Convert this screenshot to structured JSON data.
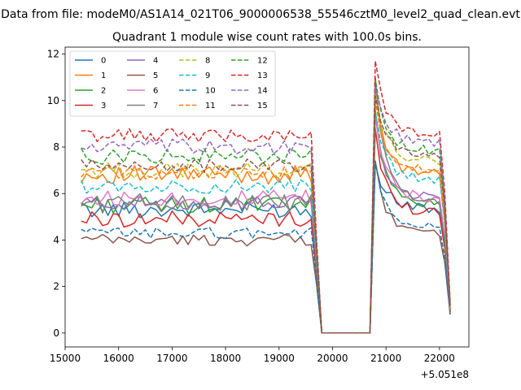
{
  "chart_data": {
    "type": "line",
    "suptitle": "Data from file: modeM0/AS1A14_021T06_9000006538_55546cztM0_level2_quad_clean.evt",
    "title": "Quadrant 1 module wise count rates with 100.0s bins.",
    "xlabel": "",
    "ylabel": "",
    "x_offset_label": "+5.051e8",
    "xlim": [
      15000,
      22550
    ],
    "ylim": [
      -0.6,
      12.3
    ],
    "x_ticks": [
      15000,
      16000,
      17000,
      18000,
      19000,
      20000,
      21000,
      22000
    ],
    "x_tick_labels": [
      "15000",
      "16000",
      "17000",
      "18000",
      "19000",
      "20000",
      "21000",
      "22000"
    ],
    "y_ticks": [
      0,
      2,
      4,
      6,
      8,
      10,
      12
    ],
    "y_tick_labels": [
      "0",
      "2",
      "4",
      "6",
      "8",
      "10",
      "12"
    ],
    "grid": false,
    "legend_position": "top-left",
    "x_start": 15300,
    "x_step": 100,
    "series": [
      {
        "name": "0",
        "color": "#1f77b4",
        "dash": "solid",
        "base": 5.3,
        "amp": 0.35,
        "peak": 7.3,
        "after": 5.4,
        "end": 0.8
      },
      {
        "name": "1",
        "color": "#ff7f0e",
        "dash": "solid",
        "base": 6.8,
        "amp": 0.4,
        "peak": 10.6,
        "after": 6.8,
        "end": 1.0
      },
      {
        "name": "2",
        "color": "#2ca02c",
        "dash": "solid",
        "base": 5.5,
        "amp": 0.35,
        "peak": 9.6,
        "after": 5.5,
        "end": 0.9
      },
      {
        "name": "3",
        "color": "#d62728",
        "dash": "solid",
        "base": 4.9,
        "amp": 0.35,
        "peak": 8.8,
        "after": 5.2,
        "end": 0.9
      },
      {
        "name": "4",
        "color": "#9467bd",
        "dash": "solid",
        "base": 5.6,
        "amp": 0.3,
        "peak": 9.3,
        "after": 5.8,
        "end": 1.0
      },
      {
        "name": "5",
        "color": "#8c564b",
        "dash": "solid",
        "base": 4.0,
        "amp": 0.25,
        "peak": 7.4,
        "after": 4.3,
        "end": 0.8
      },
      {
        "name": "6",
        "color": "#e377c2",
        "dash": "solid",
        "base": 5.8,
        "amp": 0.35,
        "peak": 9.4,
        "after": 5.8,
        "end": 1.0
      },
      {
        "name": "7",
        "color": "#7f7f7f",
        "dash": "solid",
        "base": 5.6,
        "amp": 0.4,
        "peak": 11.0,
        "after": 5.6,
        "end": 1.0
      },
      {
        "name": "8",
        "color": "#bcbd22",
        "dash": "dashed",
        "base": 7.0,
        "amp": 0.35,
        "peak": 10.4,
        "after": 7.4,
        "end": 1.1
      },
      {
        "name": "9",
        "color": "#17becf",
        "dash": "dashed",
        "base": 6.3,
        "amp": 0.3,
        "peak": 9.5,
        "after": 6.6,
        "end": 1.0
      },
      {
        "name": "10",
        "color": "#1f77b4",
        "dash": "dashed",
        "base": 4.3,
        "amp": 0.25,
        "peak": 7.4,
        "after": 4.6,
        "end": 0.8
      },
      {
        "name": "11",
        "color": "#ff7f0e",
        "dash": "dashed",
        "base": 6.9,
        "amp": 0.3,
        "peak": 10.0,
        "after": 7.0,
        "end": 1.0
      },
      {
        "name": "12",
        "color": "#2ca02c",
        "dash": "dashed",
        "base": 7.6,
        "amp": 0.35,
        "peak": 10.9,
        "after": 7.8,
        "end": 1.2
      },
      {
        "name": "13",
        "color": "#d62728",
        "dash": "dashed",
        "base": 8.5,
        "amp": 0.3,
        "peak": 11.7,
        "after": 8.6,
        "end": 1.3
      },
      {
        "name": "14",
        "color": "#9467bd",
        "dash": "dashed",
        "base": 8.0,
        "amp": 0.35,
        "peak": 10.6,
        "after": 8.2,
        "end": 1.2
      },
      {
        "name": "15",
        "color": "#8c564b",
        "dash": "dashed",
        "base": 7.2,
        "amp": 0.3,
        "peak": 10.2,
        "after": 7.6,
        "end": 1.1
      }
    ]
  }
}
